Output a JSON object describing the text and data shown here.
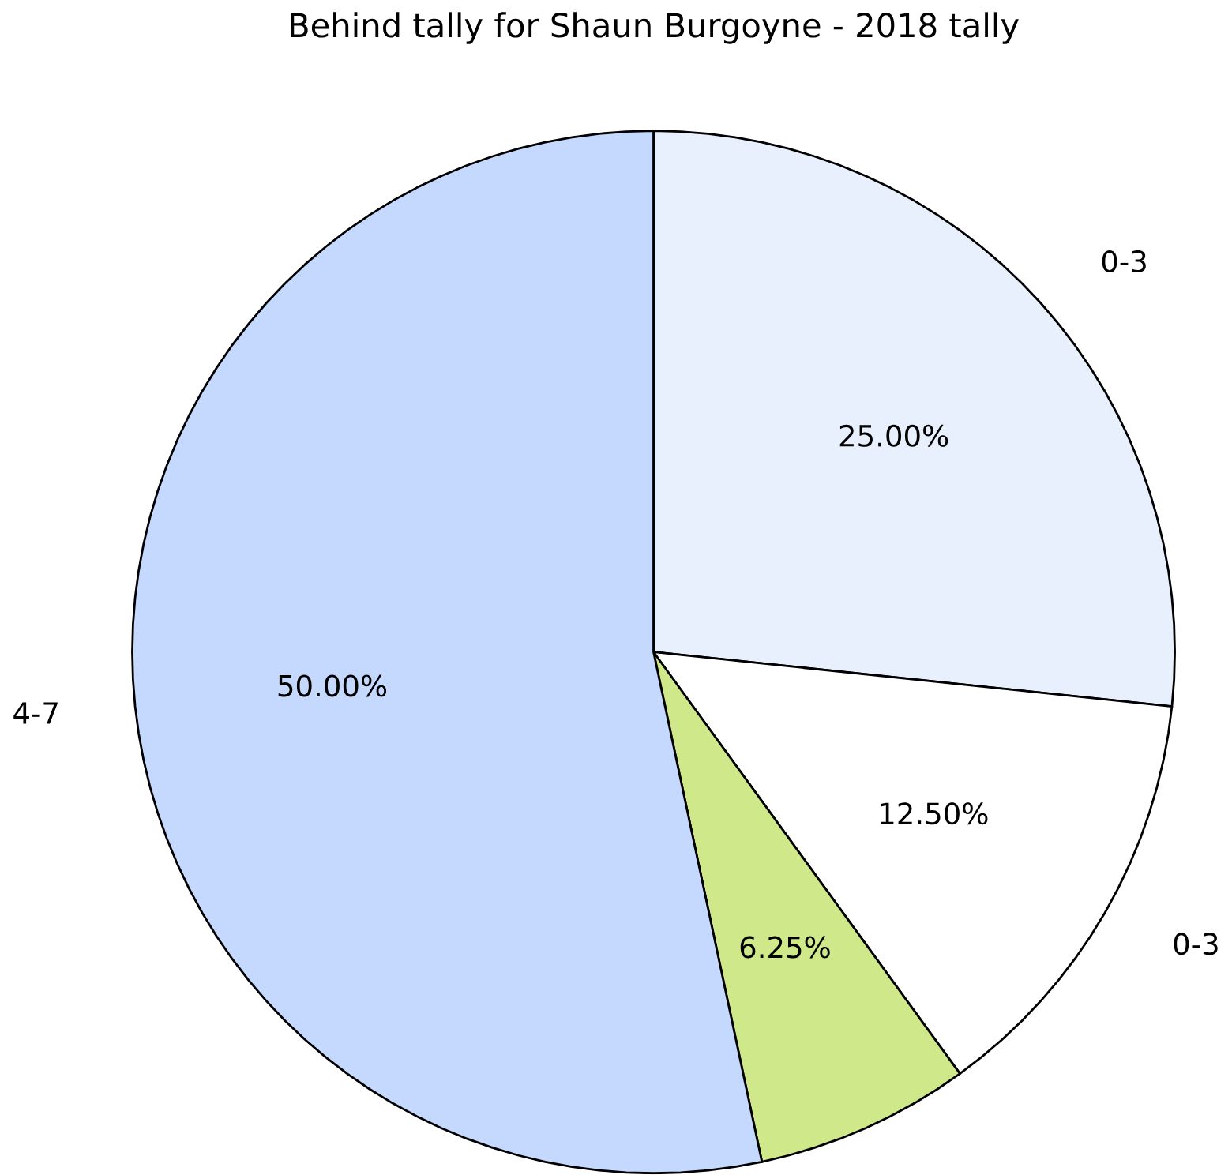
{
  "chart_data": {
    "type": "pie",
    "title": "Behind tally for Shaun Burgoyne - 2018 tally",
    "categories": [
      "0-3",
      "0-3",
      null,
      "4-7"
    ],
    "values": [
      25,
      12.5,
      6.25,
      50
    ],
    "value_labels": [
      "25.00%",
      "12.50%",
      "6.25%",
      "50.00%"
    ],
    "colors": [
      "#e8f0fe",
      "#ffffff",
      "#cfe98a",
      "#c5d9ff"
    ]
  }
}
